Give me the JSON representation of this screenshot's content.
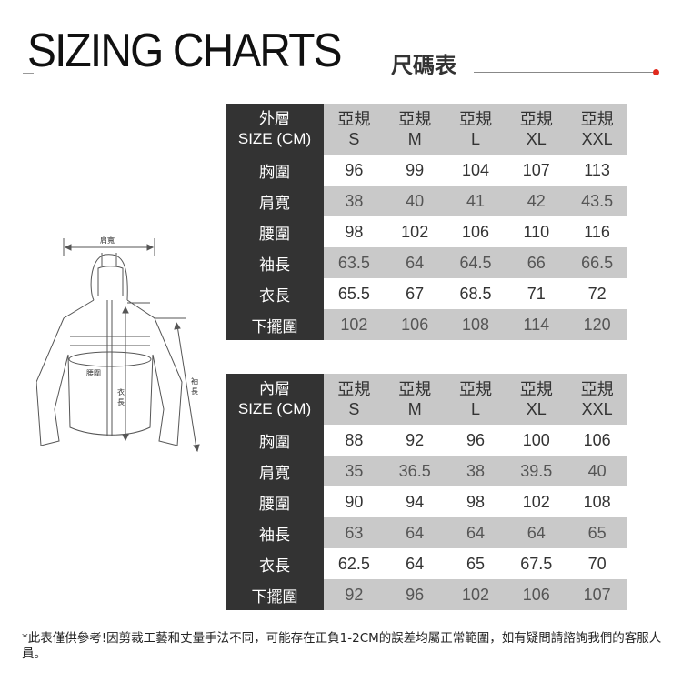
{
  "header": {
    "title": "SIZING CHARTS",
    "subtitle": "尺碼表",
    "accent_color": "#e02a1e"
  },
  "diagram": {
    "shoulder_label": "肩寬",
    "waist_label": "腰圍",
    "length_label_1": "衣",
    "length_label_2": "長",
    "sleeve_label_1": "袖",
    "sleeve_label_2": "長"
  },
  "outer_table": {
    "layer": "外層",
    "size_unit": "SIZE (CM)",
    "columns": [
      {
        "region": "亞規",
        "size": "S"
      },
      {
        "region": "亞規",
        "size": "M"
      },
      {
        "region": "亞規",
        "size": "L"
      },
      {
        "region": "亞規",
        "size": "XL"
      },
      {
        "region": "亞規",
        "size": "XXL"
      }
    ],
    "rows": [
      {
        "label": "胸圍",
        "values": [
          "96",
          "99",
          "104",
          "107",
          "113"
        ]
      },
      {
        "label": "肩寬",
        "values": [
          "38",
          "40",
          "41",
          "42",
          "43.5"
        ]
      },
      {
        "label": "腰圍",
        "values": [
          "98",
          "102",
          "106",
          "110",
          "116"
        ]
      },
      {
        "label": "袖長",
        "values": [
          "63.5",
          "64",
          "64.5",
          "66",
          "66.5"
        ]
      },
      {
        "label": "衣長",
        "values": [
          "65.5",
          "67",
          "68.5",
          "71",
          "72"
        ]
      },
      {
        "label": "下擺圍",
        "values": [
          "102",
          "106",
          "108",
          "114",
          "120"
        ]
      }
    ]
  },
  "inner_table": {
    "layer": "內層",
    "size_unit": "SIZE (CM)",
    "columns": [
      {
        "region": "亞規",
        "size": "S"
      },
      {
        "region": "亞規",
        "size": "M"
      },
      {
        "region": "亞規",
        "size": "L"
      },
      {
        "region": "亞規",
        "size": "XL"
      },
      {
        "region": "亞規",
        "size": "XXL"
      }
    ],
    "rows": [
      {
        "label": "胸圍",
        "values": [
          "88",
          "92",
          "96",
          "100",
          "106"
        ]
      },
      {
        "label": "肩寬",
        "values": [
          "35",
          "36.5",
          "38",
          "39.5",
          "40"
        ]
      },
      {
        "label": "腰圍",
        "values": [
          "90",
          "94",
          "98",
          "102",
          "108"
        ]
      },
      {
        "label": "袖長",
        "values": [
          "63",
          "64",
          "64",
          "64",
          "65"
        ]
      },
      {
        "label": "衣長",
        "values": [
          "62.5",
          "64",
          "65",
          "67.5",
          "70"
        ]
      },
      {
        "label": "下擺圍",
        "values": [
          "92",
          "96",
          "102",
          "106",
          "107"
        ]
      }
    ]
  },
  "footnote": "*此表僅供參考!因剪裁工藝和丈量手法不同，可能存在正負1-2CM的誤差均屬正常範圍，如有疑問請諮詢我們的客服人員。"
}
